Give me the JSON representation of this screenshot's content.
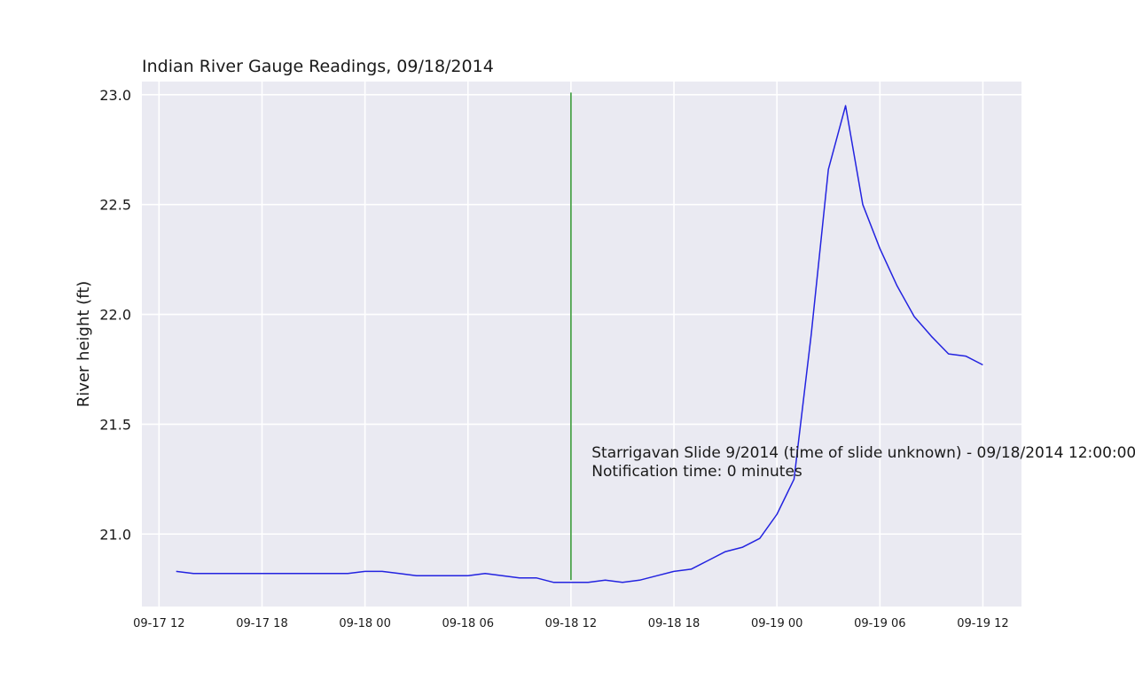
{
  "chart_data": {
    "type": "line",
    "title": "Indian River Gauge Readings, 09/18/2014",
    "xlabel": "",
    "ylabel": "River height (ft)",
    "x_ticks": [
      "09-17 12",
      "09-17 18",
      "09-18 00",
      "09-18 06",
      "09-18 12",
      "09-18 18",
      "09-19 00",
      "09-19 06",
      "09-19 12"
    ],
    "xlim": [
      "09-17 11:00",
      "09-19 14:15"
    ],
    "y_ticks": [
      "21.0",
      "21.5",
      "22.0",
      "22.5",
      "23.0"
    ],
    "ylim": [
      20.67,
      23.06
    ],
    "grid": true,
    "background": "#eaeaf2",
    "series": [
      {
        "color": "#2323e0",
        "x": [
          "09-17 13:00",
          "09-17 14:00",
          "09-17 15:00",
          "09-17 16:00",
          "09-17 17:00",
          "09-17 18:00",
          "09-17 19:00",
          "09-17 20:00",
          "09-17 21:00",
          "09-17 22:00",
          "09-17 23:00",
          "09-18 00:00",
          "09-18 01:00",
          "09-18 02:00",
          "09-18 03:00",
          "09-18 04:00",
          "09-18 05:00",
          "09-18 06:00",
          "09-18 07:00",
          "09-18 08:00",
          "09-18 09:00",
          "09-18 10:00",
          "09-18 11:00",
          "09-18 12:00",
          "09-18 13:00",
          "09-18 14:00",
          "09-18 15:00",
          "09-18 16:00",
          "09-18 17:00",
          "09-18 18:00",
          "09-18 19:00",
          "09-18 20:00",
          "09-18 21:00",
          "09-18 22:00",
          "09-18 23:00",
          "09-19 00:00",
          "09-19 01:00",
          "09-19 02:00",
          "09-19 03:00",
          "09-19 04:00",
          "09-19 05:00",
          "09-19 06:00",
          "09-19 07:00",
          "09-19 08:00",
          "09-19 09:00",
          "09-19 10:00",
          "09-19 11:00",
          "09-19 12:00"
        ],
        "y": [
          20.83,
          20.82,
          20.82,
          20.82,
          20.82,
          20.82,
          20.82,
          20.82,
          20.82,
          20.82,
          20.82,
          20.83,
          20.83,
          20.82,
          20.81,
          20.81,
          20.81,
          20.81,
          20.82,
          20.81,
          20.8,
          20.8,
          20.78,
          20.78,
          20.78,
          20.79,
          20.78,
          20.79,
          20.81,
          20.83,
          20.84,
          20.88,
          20.92,
          20.94,
          20.98,
          21.09,
          21.25,
          21.91,
          22.66,
          22.95,
          22.5,
          22.3,
          22.13,
          21.99,
          21.9,
          21.82,
          21.81,
          21.77
        ]
      }
    ],
    "vline": {
      "x": "09-18 12:00",
      "y0": 20.79,
      "y1": 23.01,
      "color": "#3a9a3a"
    },
    "annotation": {
      "x": "09-18 13:00",
      "y": 21.32,
      "lines": [
        "Starrigavan Slide 9/2014 (time of slide unknown) - 09/18/2014 12:00:00",
        "Notification time: 0 minutes"
      ]
    }
  }
}
